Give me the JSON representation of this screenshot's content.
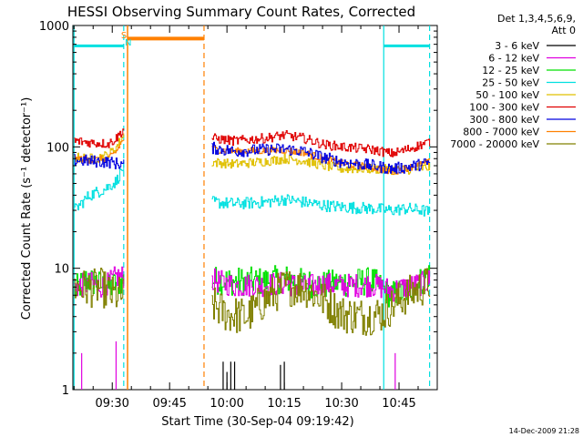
{
  "chart_data": {
    "type": "line",
    "title": "HESSI Observing Summary Count Rates, Corrected",
    "xlabel": "Start Time (30-Sep-04 09:19:42)",
    "ylabel": "Corrected Count Rate (s⁻¹ detector⁻¹)",
    "y_scale": "log",
    "ylim": [
      1,
      1000
    ],
    "xlim": [
      "09:19:42",
      "10:55:00"
    ],
    "x_ticks": [
      "09:30",
      "09:45",
      "10:00",
      "10:15",
      "10:30",
      "10:45"
    ],
    "y_ticks": [
      "1",
      "10",
      "100",
      "1000"
    ],
    "legend": {
      "position": "right",
      "header": [
        "Det 1,3,4,5,6,9,",
        "Att 0"
      ],
      "entries": [
        {
          "label": "3 - 6 keV",
          "color": "#000000"
        },
        {
          "label": "6 - 12 keV",
          "color": "#e000e0"
        },
        {
          "label": "12 - 25 keV",
          "color": "#00e000"
        },
        {
          "label": "25 - 50 keV",
          "color": "#00e0e0"
        },
        {
          "label": "50 - 100 keV",
          "color": "#e0c000"
        },
        {
          "label": "100 - 300 keV",
          "color": "#e00000"
        },
        {
          "label": "300 - 800 keV",
          "color": "#0000e0"
        },
        {
          "label": "800 - 7000 keV",
          "color": "#ff8000"
        },
        {
          "label": "7000 - 20000 keV",
          "color": "#808000"
        }
      ]
    },
    "segments": [
      {
        "start": "09:20",
        "end": "09:33"
      },
      {
        "start": "09:56",
        "end": "10:53"
      }
    ],
    "series": [
      {
        "name": "100 - 300 keV",
        "color": "#e00000",
        "points": [
          [
            "09:20",
            112
          ],
          [
            "09:25",
            108
          ],
          [
            "09:29",
            106
          ],
          [
            "09:31",
            118
          ],
          [
            "09:33",
            140
          ],
          [
            "09:56",
            118
          ],
          [
            "10:02",
            112
          ],
          [
            "10:10",
            118
          ],
          [
            "10:15",
            125
          ],
          [
            "10:20",
            118
          ],
          [
            "10:25",
            105
          ],
          [
            "10:30",
            100
          ],
          [
            "10:38",
            95
          ],
          [
            "10:43",
            88
          ],
          [
            "10:47",
            95
          ],
          [
            "10:51",
            105
          ],
          [
            "10:53",
            110
          ]
        ]
      },
      {
        "name": "300 - 800 keV",
        "color": "#0000e0",
        "points": [
          [
            "09:20",
            78
          ],
          [
            "09:25",
            76
          ],
          [
            "09:29",
            75
          ],
          [
            "09:31",
            73
          ],
          [
            "09:33",
            72
          ],
          [
            "09:56",
            98
          ],
          [
            "10:02",
            92
          ],
          [
            "10:10",
            95
          ],
          [
            "10:15",
            96
          ],
          [
            "10:20",
            92
          ],
          [
            "10:25",
            82
          ],
          [
            "10:30",
            75
          ],
          [
            "10:38",
            70
          ],
          [
            "10:43",
            66
          ],
          [
            "10:47",
            68
          ],
          [
            "10:51",
            72
          ],
          [
            "10:53",
            74
          ]
        ]
      },
      {
        "name": "800 - 7000 keV",
        "color": "#ff8000",
        "points": [
          [
            "09:20",
            80
          ],
          [
            "09:25",
            78
          ],
          [
            "09:29",
            80
          ],
          [
            "09:31",
            92
          ],
          [
            "09:33",
            118
          ],
          [
            "09:56",
            96
          ],
          [
            "10:02",
            92
          ],
          [
            "10:10",
            93
          ],
          [
            "10:15",
            94
          ],
          [
            "10:20",
            90
          ],
          [
            "10:25",
            80
          ],
          [
            "10:30",
            73
          ],
          [
            "10:38",
            68
          ],
          [
            "10:43",
            62
          ],
          [
            "10:47",
            67
          ],
          [
            "10:51",
            72
          ],
          [
            "10:53",
            75
          ]
        ]
      },
      {
        "name": "50 - 100 keV",
        "color": "#e0c000",
        "points": [
          [
            "09:20",
            82
          ],
          [
            "09:25",
            80
          ],
          [
            "09:29",
            86
          ],
          [
            "09:31",
            100
          ],
          [
            "09:33",
            125
          ],
          [
            "09:56",
            75
          ],
          [
            "10:02",
            72
          ],
          [
            "10:10",
            76
          ],
          [
            "10:15",
            80
          ],
          [
            "10:20",
            77
          ],
          [
            "10:25",
            70
          ],
          [
            "10:30",
            66
          ],
          [
            "10:38",
            66
          ],
          [
            "10:43",
            65
          ],
          [
            "10:47",
            65
          ],
          [
            "10:51",
            67
          ],
          [
            "10:53",
            68
          ]
        ]
      },
      {
        "name": "25 - 50 keV",
        "color": "#00e0e0",
        "points": [
          [
            "09:20",
            30
          ],
          [
            "09:24",
            40
          ],
          [
            "09:28",
            45
          ],
          [
            "09:31",
            52
          ],
          [
            "09:33",
            70
          ],
          [
            "09:56",
            35
          ],
          [
            "10:02",
            34
          ],
          [
            "10:10",
            35
          ],
          [
            "10:15",
            37
          ],
          [
            "10:20",
            35
          ],
          [
            "10:25",
            33
          ],
          [
            "10:30",
            32
          ],
          [
            "10:38",
            31
          ],
          [
            "10:43",
            30
          ],
          [
            "10:47",
            31
          ],
          [
            "10:51",
            30
          ],
          [
            "10:53",
            29
          ]
        ]
      },
      {
        "name": "12 - 25 keV",
        "color": "#00e000",
        "points": [
          [
            "09:20",
            6.5
          ],
          [
            "09:23",
            8
          ],
          [
            "09:26",
            7.5
          ],
          [
            "09:29",
            6.8
          ],
          [
            "09:31",
            7.5
          ],
          [
            "09:33",
            8
          ],
          [
            "09:56",
            8
          ],
          [
            "10:02",
            7.8
          ],
          [
            "10:10",
            7.8
          ],
          [
            "10:15",
            8.2
          ],
          [
            "10:20",
            7.6
          ],
          [
            "10:25",
            7.3
          ],
          [
            "10:30",
            7.6
          ],
          [
            "10:38",
            7.8
          ],
          [
            "10:43",
            6
          ],
          [
            "10:47",
            6.5
          ],
          [
            "10:51",
            8
          ],
          [
            "10:53",
            9
          ]
        ]
      },
      {
        "name": "6 - 12 keV",
        "color": "#e000e0",
        "points": [
          [
            "09:20",
            7
          ],
          [
            "09:24",
            7.5
          ],
          [
            "09:28",
            7
          ],
          [
            "09:31",
            8.5
          ],
          [
            "09:33",
            8.5
          ],
          [
            "09:56",
            8
          ],
          [
            "10:02",
            7.2
          ],
          [
            "10:10",
            7.3
          ],
          [
            "10:15",
            7.5
          ],
          [
            "10:20",
            7
          ],
          [
            "10:25",
            7.4
          ],
          [
            "10:30",
            7.2
          ],
          [
            "10:38",
            7.3
          ],
          [
            "10:43",
            6.6
          ],
          [
            "10:47",
            7
          ],
          [
            "10:51",
            7.5
          ],
          [
            "10:53",
            8
          ]
        ]
      },
      {
        "name": "7000 - 20000 keV",
        "color": "#808000",
        "points": [
          [
            "09:20",
            7
          ],
          [
            "09:24",
            6.8
          ],
          [
            "09:27",
            7
          ],
          [
            "09:30",
            6
          ],
          [
            "09:33",
            6
          ],
          [
            "09:56",
            5
          ],
          [
            "10:00",
            4.2
          ],
          [
            "10:05",
            4
          ],
          [
            "10:10",
            5.5
          ],
          [
            "10:15",
            7
          ],
          [
            "10:20",
            7
          ],
          [
            "10:25",
            5.5
          ],
          [
            "10:30",
            4.2
          ],
          [
            "10:36",
            4
          ],
          [
            "10:41",
            4.3
          ],
          [
            "10:45",
            5.5
          ],
          [
            "10:49",
            6.5
          ],
          [
            "10:53",
            7.5
          ]
        ]
      },
      {
        "name": "3 - 6 keV",
        "color": "#000000",
        "points": []
      }
    ],
    "spikes": [
      {
        "color": "#e000e0",
        "times": [
          "09:22",
          "09:31",
          "10:44"
        ],
        "peaks": [
          2,
          2.5,
          2
        ]
      },
      {
        "color": "#000000",
        "times": [
          "09:59",
          "10:00",
          "10:01",
          "10:02",
          "10:14",
          "10:15"
        ],
        "peaks": [
          1.7,
          1.4,
          1.7,
          1.7,
          1.6,
          1.7
        ]
      }
    ],
    "flags": [
      {
        "label": "S",
        "color": "#ff8000",
        "time": "09:33"
      },
      {
        "label": "N",
        "color": "#00e0e0",
        "time": "09:34"
      }
    ],
    "markers": {
      "cyan_solid": [
        "09:20",
        "10:41"
      ],
      "cyan_dashed": [
        "09:33",
        "10:53"
      ],
      "orange_solid": [
        "09:34"
      ],
      "orange_dashed": [
        "09:54"
      ],
      "cyan_bars": [
        {
          "start": "09:20",
          "end": "09:33",
          "value": 680
        },
        {
          "start": "10:41",
          "end": "10:53",
          "value": 680
        }
      ],
      "orange_bar": {
        "start": "09:34",
        "end": "09:54",
        "value": 780
      }
    }
  },
  "footer": {
    "timestamp": "14-Dec-2009 21:28"
  }
}
